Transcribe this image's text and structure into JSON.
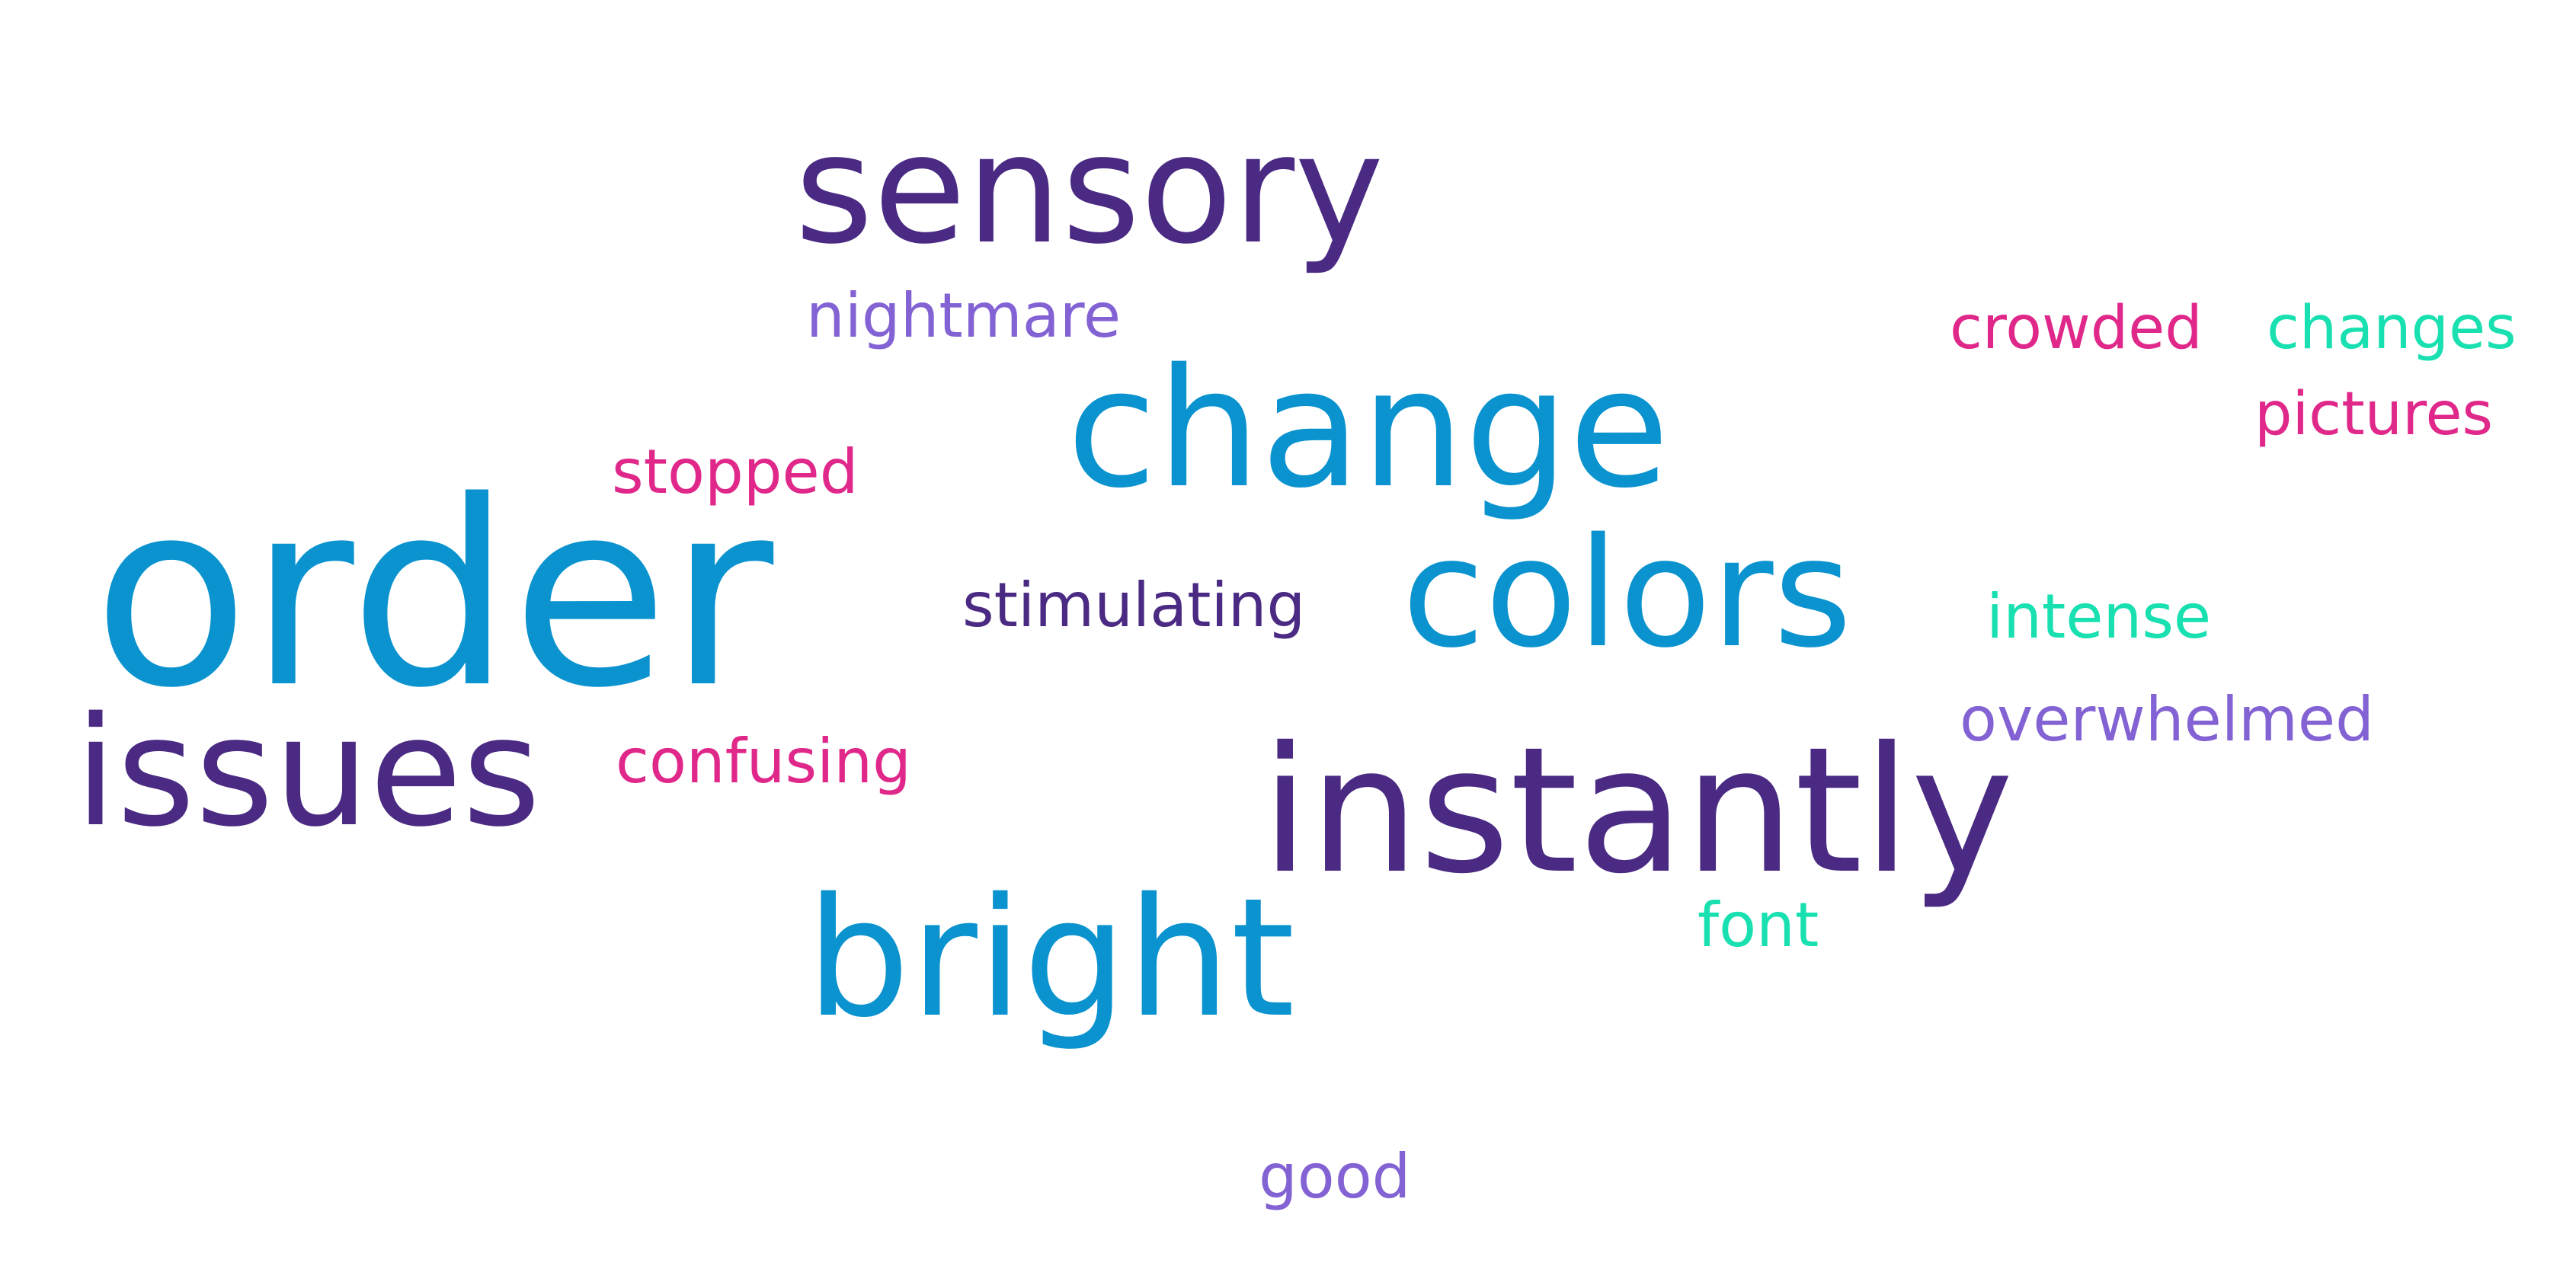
{
  "colors": {
    "dark_purple": "#4a2a82",
    "blue": "#0a93cf",
    "lavender": "#8362d4",
    "magenta": "#e0288a",
    "mint": "#18e0b0",
    "background": "#ffffff"
  },
  "words": {
    "sensory": "sensory",
    "nightmare": "nightmare",
    "crowded": "crowded",
    "changes": "changes",
    "change": "change",
    "pictures": "pictures",
    "stopped": "stopped",
    "order": "order",
    "stimulating": "stimulating",
    "colors": "colors",
    "intense": "intense",
    "overwhelmed": "overwhelmed",
    "issues": "issues",
    "confusing": "confusing",
    "instantly": "instantly",
    "font": "font",
    "bright": "bright",
    "good": "good"
  },
  "word_colors": {
    "sensory": "#4a2a82",
    "nightmare": "#8362d4",
    "crowded": "#e0288a",
    "changes": "#18e0b0",
    "change": "#0a93cf",
    "pictures": "#e0288a",
    "stopped": "#e0288a",
    "order": "#0a93cf",
    "stimulating": "#4a2a82",
    "colors": "#0a93cf",
    "intense": "#18e0b0",
    "overwhelmed": "#8362d4",
    "issues": "#4a2a82",
    "confusing": "#e0288a",
    "instantly": "#4a2a82",
    "font": "#18e0b0",
    "bright": "#0a93cf",
    "good": "#8362d4"
  }
}
